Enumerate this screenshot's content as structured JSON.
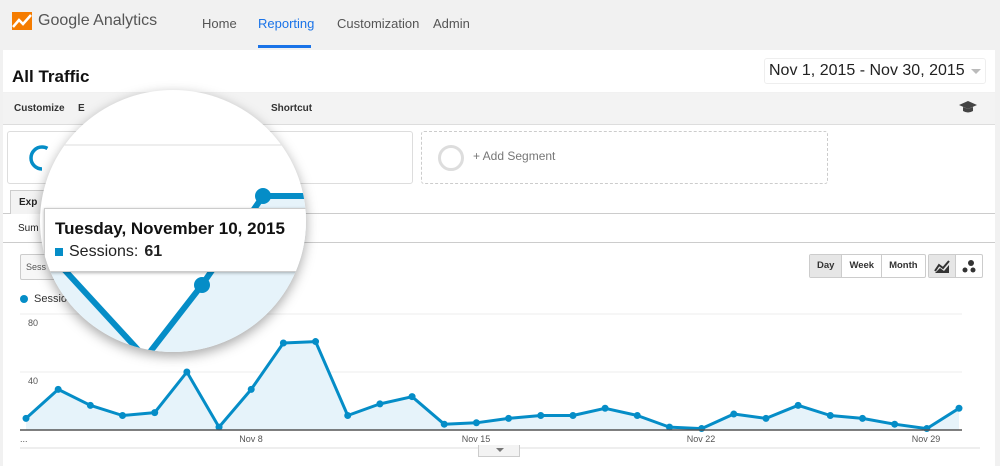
{
  "header": {
    "app_name": "Google Analytics",
    "nav": [
      {
        "label": "Home"
      },
      {
        "label": "Reporting",
        "active": true
      },
      {
        "label": "Customization"
      },
      {
        "label": "Admin"
      }
    ]
  },
  "page": {
    "title": "All Traffic",
    "date_range": "Nov 1, 2015 - Nov 30, 2015"
  },
  "toolbar": {
    "customize": "Customize",
    "export_partial": "E",
    "shortcut": "Shortcut",
    "icon": "graduation-cap-icon"
  },
  "segments": {
    "add_segment": "+ Add Segment"
  },
  "tabs": {
    "explorer_partial": "Exp",
    "summary_partial": "Sum"
  },
  "controls": {
    "metric_partial": "Sess",
    "granularity": [
      {
        "label": "Day",
        "selected": true
      },
      {
        "label": "Week"
      },
      {
        "label": "Month"
      }
    ],
    "chart_types": [
      "line-chart-icon",
      "motion-chart-icon"
    ]
  },
  "legend": {
    "series_partial": "Sessio"
  },
  "tooltip": {
    "date": "Tuesday, November 10, 2015",
    "metric": "Sessions:",
    "value": "61"
  },
  "colors": {
    "accent": "#1a73e8",
    "series": "#058dc7",
    "fill": "#e6f3fa"
  },
  "chart_data": {
    "type": "area",
    "x": [
      "Nov 1",
      "Nov 2",
      "Nov 3",
      "Nov 4",
      "Nov 5",
      "Nov 6",
      "Nov 7",
      "Nov 8",
      "Nov 9",
      "Nov 10",
      "Nov 11",
      "Nov 12",
      "Nov 13",
      "Nov 14",
      "Nov 15",
      "Nov 16",
      "Nov 17",
      "Nov 18",
      "Nov 19",
      "Nov 20",
      "Nov 21",
      "Nov 22",
      "Nov 23",
      "Nov 24",
      "Nov 25",
      "Nov 26",
      "Nov 27",
      "Nov 28",
      "Nov 29",
      "Nov 30"
    ],
    "series": [
      {
        "name": "Sessions",
        "values": [
          8,
          28,
          17,
          10,
          12,
          40,
          2,
          28,
          60,
          61,
          10,
          18,
          23,
          4,
          5,
          8,
          10,
          10,
          15,
          10,
          2,
          1,
          11,
          8,
          17,
          10,
          8,
          4,
          1,
          15
        ]
      }
    ],
    "x_tick_labels": [
      "...",
      "Nov 8",
      "Nov 15",
      "Nov 22",
      "Nov 29"
    ],
    "y_tick_labels": [
      "80",
      "40"
    ],
    "ylim": [
      0,
      80
    ],
    "grid": true
  }
}
